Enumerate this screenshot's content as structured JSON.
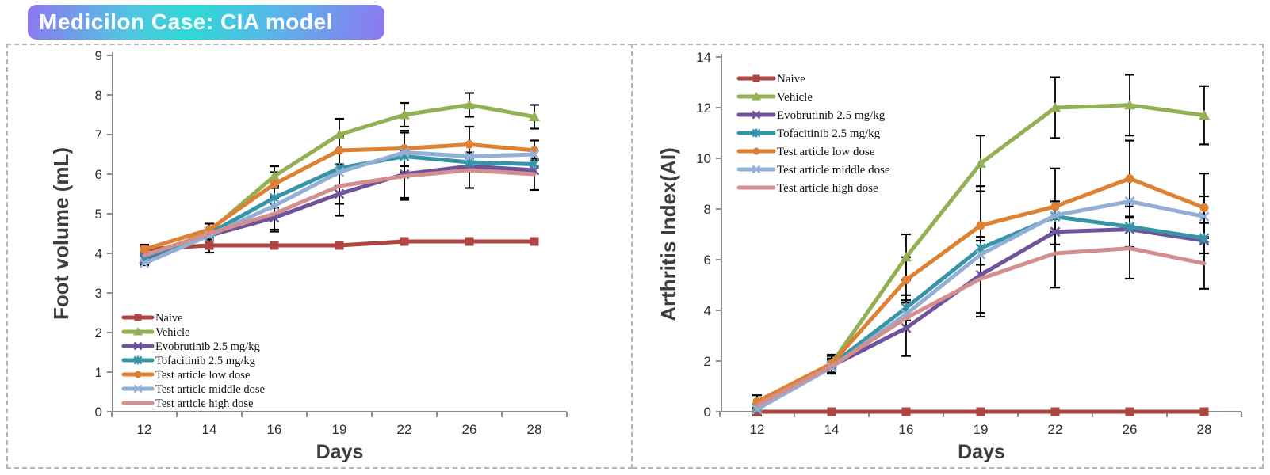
{
  "title": "Medicilon Case: CIA model",
  "badge_colors": {
    "edge": "#8a7bf0",
    "center": "#2fd8d5"
  },
  "chart_data": [
    {
      "type": "line",
      "title": "Foot volume chart",
      "xlabel": "Days",
      "ylabel": "Foot volume (mL)",
      "categories": [
        12,
        14,
        16,
        19,
        22,
        26,
        28
      ],
      "ylim": [
        0,
        9
      ],
      "ytick_step": 1,
      "grid": false,
      "legend_position": "bottom-left",
      "error_bar_color": "#000000",
      "series": [
        {
          "name": "Naive",
          "color": "#ae4541",
          "marker": "square",
          "values": [
            4.1,
            4.2,
            4.2,
            4.2,
            4.3,
            4.3,
            4.3
          ],
          "err": [
            0.08,
            0.18,
            0,
            0,
            0,
            0,
            0
          ]
        },
        {
          "name": "Vehicle",
          "color": "#94b054",
          "marker": "triangle",
          "values": [
            3.85,
            4.55,
            5.95,
            7.0,
            7.5,
            7.75,
            7.45
          ],
          "err": [
            0.15,
            0.2,
            0.25,
            0.4,
            0.3,
            0.3,
            0.3
          ]
        },
        {
          "name": "Evobrutinib 2.5 mg/kg",
          "color": "#70519b",
          "marker": "x",
          "values": [
            3.85,
            4.45,
            4.9,
            5.5,
            6.0,
            6.2,
            6.1
          ],
          "err": [
            0,
            0,
            0.35,
            0.55,
            0.6,
            0,
            0
          ]
        },
        {
          "name": "Tofacitinib 2.5 mg/kg",
          "color": "#3793a6",
          "marker": "asterisk",
          "values": [
            3.9,
            4.5,
            5.4,
            6.15,
            6.45,
            6.3,
            6.25
          ],
          "err": [
            0,
            0,
            0.25,
            0.45,
            0,
            0,
            0
          ]
        },
        {
          "name": "Test article low dose",
          "color": "#dd8133",
          "marker": "circle",
          "values": [
            4.1,
            4.6,
            5.75,
            6.6,
            6.65,
            6.75,
            6.6
          ],
          "err": [
            0.12,
            0,
            0.3,
            0.35,
            0.45,
            0.45,
            0.25
          ]
        },
        {
          "name": "Test article middle dose",
          "color": "#94afd6",
          "marker": "x",
          "values": [
            3.75,
            4.45,
            5.2,
            6.05,
            6.55,
            6.45,
            6.5
          ],
          "err": [
            0,
            0,
            0,
            0,
            0.5,
            0,
            0
          ]
        },
        {
          "name": "Test article high dose",
          "color": "#d28f8e",
          "marker": "none",
          "values": [
            3.95,
            4.5,
            5.0,
            5.7,
            5.95,
            6.1,
            6.0
          ],
          "err": [
            0,
            0,
            0.4,
            0.45,
            0.6,
            0.45,
            0.4
          ]
        }
      ]
    },
    {
      "type": "line",
      "title": "Arthritis index chart",
      "xlabel": "Days",
      "ylabel": "Arthritis Index(AI)",
      "categories": [
        12,
        14,
        16,
        19,
        22,
        26,
        28
      ],
      "ylim": [
        0,
        14
      ],
      "ytick_step": 2,
      "grid": false,
      "legend_position": "top-left",
      "error_bar_color": "#000000",
      "series": [
        {
          "name": "Naive",
          "color": "#ae4541",
          "marker": "square",
          "values": [
            0,
            0,
            0,
            0,
            0,
            0,
            0
          ],
          "err": [
            0.15,
            0,
            0,
            0,
            0,
            0,
            0
          ]
        },
        {
          "name": "Vehicle",
          "color": "#94b054",
          "marker": "triangle",
          "values": [
            0.2,
            1.9,
            6.1,
            9.8,
            12.0,
            12.1,
            11.7
          ],
          "err": [
            0.1,
            0.35,
            0.9,
            1.1,
            1.2,
            1.2,
            1.15
          ]
        },
        {
          "name": "Evobrutinib 2.5 mg/kg",
          "color": "#70519b",
          "marker": "x",
          "values": [
            0.1,
            1.8,
            3.3,
            5.4,
            7.1,
            7.2,
            6.75
          ],
          "err": [
            0,
            0.3,
            1.1,
            1.5,
            0,
            0,
            0
          ]
        },
        {
          "name": "Tofacitinib 2.5 mg/kg",
          "color": "#3793a6",
          "marker": "asterisk",
          "values": [
            0.15,
            1.85,
            4.1,
            6.45,
            7.7,
            7.3,
            6.85
          ],
          "err": [
            0,
            0.35,
            0.5,
            0,
            0.6,
            0.8,
            0.6
          ]
        },
        {
          "name": "Test article low dose",
          "color": "#dd8133",
          "marker": "circle",
          "values": [
            0.4,
            1.9,
            5.2,
            7.35,
            8.1,
            9.2,
            8.05
          ],
          "err": [
            0.25,
            0,
            0.9,
            1.55,
            1.5,
            1.5,
            1.35
          ]
        },
        {
          "name": "Test article middle dose",
          "color": "#94afd6",
          "marker": "x",
          "values": [
            0.1,
            1.75,
            3.85,
            6.2,
            7.75,
            8.3,
            7.7
          ],
          "err": [
            0,
            0,
            0,
            0,
            0,
            0,
            0.8
          ]
        },
        {
          "name": "Test article high dose",
          "color": "#d28f8e",
          "marker": "none",
          "values": [
            0.25,
            1.8,
            3.7,
            5.25,
            6.25,
            6.45,
            5.85
          ],
          "err": [
            0,
            0.25,
            0,
            1.5,
            1.35,
            1.2,
            1.0
          ]
        }
      ]
    }
  ]
}
